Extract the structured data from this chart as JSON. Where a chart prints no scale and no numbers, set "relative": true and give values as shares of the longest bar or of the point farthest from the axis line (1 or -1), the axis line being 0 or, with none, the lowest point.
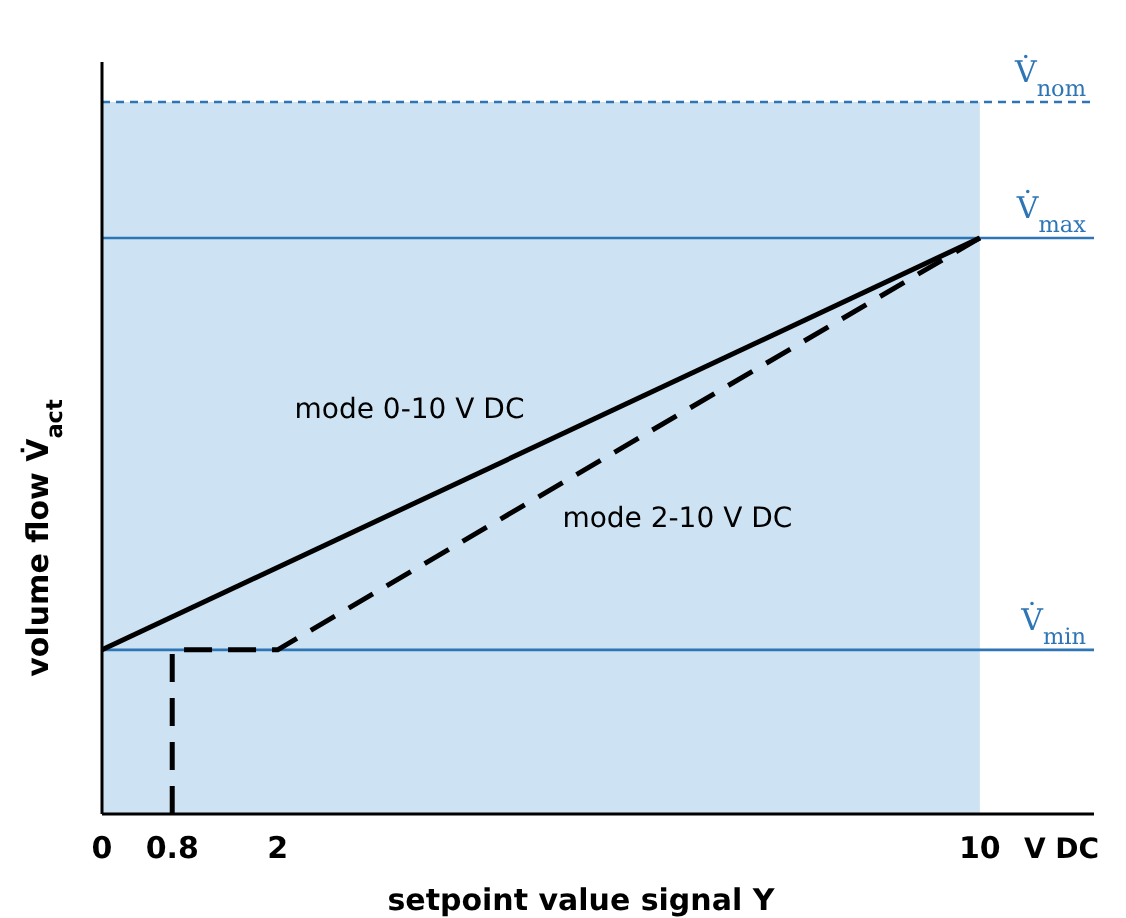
{
  "chart_data": {
    "type": "line",
    "relative": true,
    "xlabel": "setpoint value signal Y",
    "ylabel": "volume flow  V̇$_{act}$",
    "xlim": [
      0,
      11.3
    ],
    "xticks": [
      0,
      0.8,
      2,
      10
    ],
    "series": [
      {
        "name": "mode 0-10 V DC",
        "color": "#000000",
        "line_style": "solid",
        "x": [
          0,
          10
        ],
        "values": [
          0.285,
          1
        ]
      },
      {
        "name": "mode 2-10 V DC",
        "color": "#000000",
        "line_style": "dashed",
        "x": [
          0.8,
          0.8,
          2,
          10
        ],
        "values": [
          0,
          0.285,
          0.285,
          1
        ]
      }
    ],
    "ref_lines": [
      {
        "axis": "y",
        "value": 1.236,
        "label": "V̇$_{nom}$",
        "color": "#2e75b6",
        "line_style": "dashed"
      },
      {
        "axis": "y",
        "value": 1,
        "label": "V̇$_{max}$",
        "color": "#2e75b6",
        "line_style": "solid"
      },
      {
        "axis": "y",
        "value": 0.285,
        "label": "V̇$_{min}$",
        "color": "#2e75b6",
        "line_style": "solid"
      }
    ],
    "bands": [
      {
        "axis": "x",
        "from": 0,
        "to": 10,
        "color": "#cde3f3"
      }
    ],
    "annotations": [
      "V DC"
    ]
  }
}
